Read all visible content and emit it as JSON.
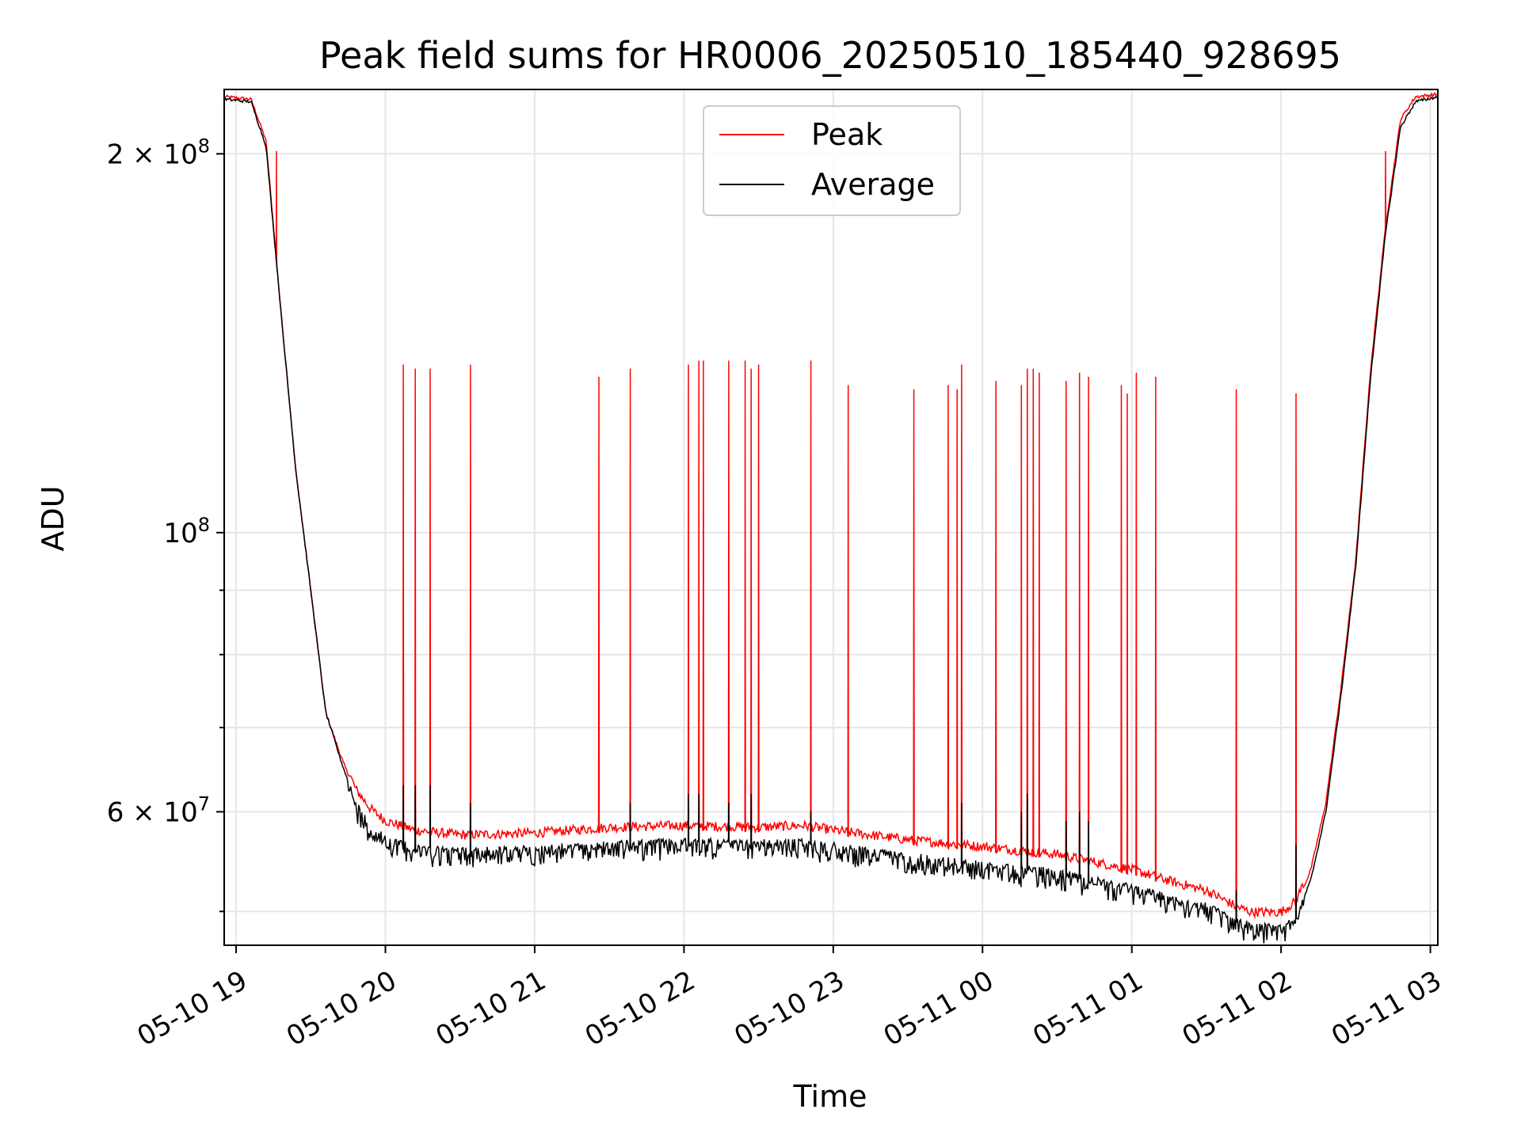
{
  "chart_data": {
    "type": "line",
    "title": "Peak field sums for HR0006_20250510_185440_928695",
    "xlabel": "Time",
    "ylabel": "ADU",
    "yscale": "log",
    "ylim": [
      47000000,
      225000000
    ],
    "xlim_hours": [
      18.92,
      27.05
    ],
    "grid": true,
    "legend_position": "top-center",
    "x_ticks": [
      {
        "hour": 19,
        "label": "05-10 19"
      },
      {
        "hour": 20,
        "label": "05-10 20"
      },
      {
        "hour": 21,
        "label": "05-10 21"
      },
      {
        "hour": 22,
        "label": "05-10 22"
      },
      {
        "hour": 23,
        "label": "05-10 23"
      },
      {
        "hour": 24,
        "label": "05-11 00"
      },
      {
        "hour": 25,
        "label": "05-11 01"
      },
      {
        "hour": 26,
        "label": "05-11 02"
      },
      {
        "hour": 27,
        "label": "05-11 03"
      }
    ],
    "y_major_ticks": [
      {
        "value": 60000000,
        "mantissa": "6",
        "exponent": "7",
        "label": "6 × 10^7"
      },
      {
        "value": 100000000,
        "mantissa": "",
        "exponent": "8",
        "label": "10^8"
      },
      {
        "value": 200000000,
        "mantissa": "2",
        "exponent": "8",
        "label": "2 × 10^8"
      }
    ],
    "y_minor_ticks": [
      50000000,
      70000000,
      80000000,
      90000000
    ],
    "series": [
      {
        "name": "Peak",
        "color": "#ff0000",
        "points": [
          [
            18.92,
            222000000
          ],
          [
            19.1,
            221000000
          ],
          [
            19.2,
            205000000
          ],
          [
            19.3,
            150000000
          ],
          [
            19.4,
            112000000
          ],
          [
            19.5,
            90000000
          ],
          [
            19.6,
            72000000
          ],
          [
            19.7,
            66500000
          ],
          [
            19.8,
            62000000
          ],
          [
            19.9,
            59800000
          ],
          [
            20.0,
            58500000
          ],
          [
            20.2,
            57500000
          ],
          [
            20.5,
            57000000
          ],
          [
            21.0,
            57200000
          ],
          [
            21.5,
            57800000
          ],
          [
            22.0,
            58000000
          ],
          [
            22.5,
            57800000
          ],
          [
            22.8,
            58000000
          ],
          [
            23.0,
            57500000
          ],
          [
            23.5,
            56500000
          ],
          [
            24.0,
            55800000
          ],
          [
            24.5,
            55000000
          ],
          [
            25.0,
            53500000
          ],
          [
            25.3,
            52200000
          ],
          [
            25.5,
            51500000
          ],
          [
            25.7,
            50000000
          ],
          [
            25.8,
            49500000
          ],
          [
            26.0,
            49500000
          ],
          [
            26.1,
            50500000
          ],
          [
            26.2,
            54000000
          ],
          [
            26.3,
            61000000
          ],
          [
            26.4,
            75000000
          ],
          [
            26.5,
            95000000
          ],
          [
            26.6,
            135000000
          ],
          [
            26.7,
            175000000
          ],
          [
            26.8,
            213000000
          ],
          [
            26.9,
            222000000
          ],
          [
            27.05,
            223000000
          ]
        ],
        "spikes": [
          [
            19.27,
            201000000
          ],
          [
            20.12,
            136000000
          ],
          [
            20.2,
            135000000
          ],
          [
            20.3,
            135000000
          ],
          [
            20.57,
            136000000
          ],
          [
            21.43,
            133000000
          ],
          [
            21.64,
            135000000
          ],
          [
            22.03,
            136000000
          ],
          [
            22.1,
            137000000
          ],
          [
            22.13,
            137000000
          ],
          [
            22.3,
            137000000
          ],
          [
            22.41,
            137000000
          ],
          [
            22.45,
            135000000
          ],
          [
            22.5,
            136000000
          ],
          [
            22.85,
            137000000
          ],
          [
            23.1,
            131000000
          ],
          [
            23.54,
            130000000
          ],
          [
            23.77,
            131000000
          ],
          [
            23.83,
            130000000
          ],
          [
            23.86,
            136000000
          ],
          [
            24.09,
            132000000
          ],
          [
            24.26,
            131000000
          ],
          [
            24.3,
            135000000
          ],
          [
            24.34,
            135000000
          ],
          [
            24.38,
            134000000
          ],
          [
            24.56,
            132000000
          ],
          [
            24.65,
            134000000
          ],
          [
            24.71,
            133000000
          ],
          [
            24.93,
            131000000
          ],
          [
            24.97,
            129000000
          ],
          [
            25.03,
            134000000
          ],
          [
            25.16,
            133000000
          ],
          [
            25.7,
            130000000
          ],
          [
            26.1,
            129000000
          ],
          [
            26.7,
            201000000
          ]
        ]
      },
      {
        "name": "Average",
        "color": "#000000",
        "points": [
          [
            18.92,
            221000000
          ],
          [
            19.1,
            220000000
          ],
          [
            19.2,
            203000000
          ],
          [
            19.3,
            150000000
          ],
          [
            19.4,
            112000000
          ],
          [
            19.5,
            90000000
          ],
          [
            19.6,
            72000000
          ],
          [
            19.7,
            66000000
          ],
          [
            19.8,
            61000000
          ],
          [
            19.9,
            58500000
          ],
          [
            20.0,
            57300000
          ],
          [
            20.2,
            56300000
          ],
          [
            20.5,
            55900000
          ],
          [
            21.0,
            56100000
          ],
          [
            21.5,
            56600000
          ],
          [
            22.0,
            56900000
          ],
          [
            22.5,
            56700000
          ],
          [
            22.8,
            56800000
          ],
          [
            23.0,
            56400000
          ],
          [
            23.5,
            55400000
          ],
          [
            24.0,
            54500000
          ],
          [
            24.5,
            53800000
          ],
          [
            25.0,
            52300000
          ],
          [
            25.3,
            51200000
          ],
          [
            25.5,
            50500000
          ],
          [
            25.7,
            49200000
          ],
          [
            25.8,
            48800000
          ],
          [
            26.0,
            48500000
          ],
          [
            26.1,
            49300000
          ],
          [
            26.2,
            53000000
          ],
          [
            26.3,
            60000000
          ],
          [
            26.4,
            74000000
          ],
          [
            26.5,
            94000000
          ],
          [
            26.6,
            133000000
          ],
          [
            26.7,
            173000000
          ],
          [
            26.8,
            210000000
          ],
          [
            26.9,
            220000000
          ],
          [
            27.05,
            222000000
          ]
        ],
        "spikes": [
          [
            20.12,
            63000000
          ],
          [
            20.2,
            63000000
          ],
          [
            20.3,
            63000000
          ],
          [
            20.57,
            61000000
          ],
          [
            21.64,
            61000000
          ],
          [
            22.03,
            62000000
          ],
          [
            22.1,
            62000000
          ],
          [
            22.3,
            61000000
          ],
          [
            22.45,
            62000000
          ],
          [
            22.85,
            60000000
          ],
          [
            23.86,
            61000000
          ],
          [
            24.26,
            60000000
          ],
          [
            24.3,
            62000000
          ],
          [
            24.56,
            59000000
          ],
          [
            24.65,
            60000000
          ],
          [
            24.71,
            59000000
          ],
          [
            25.7,
            52000000
          ],
          [
            26.1,
            56500000
          ]
        ]
      }
    ]
  }
}
